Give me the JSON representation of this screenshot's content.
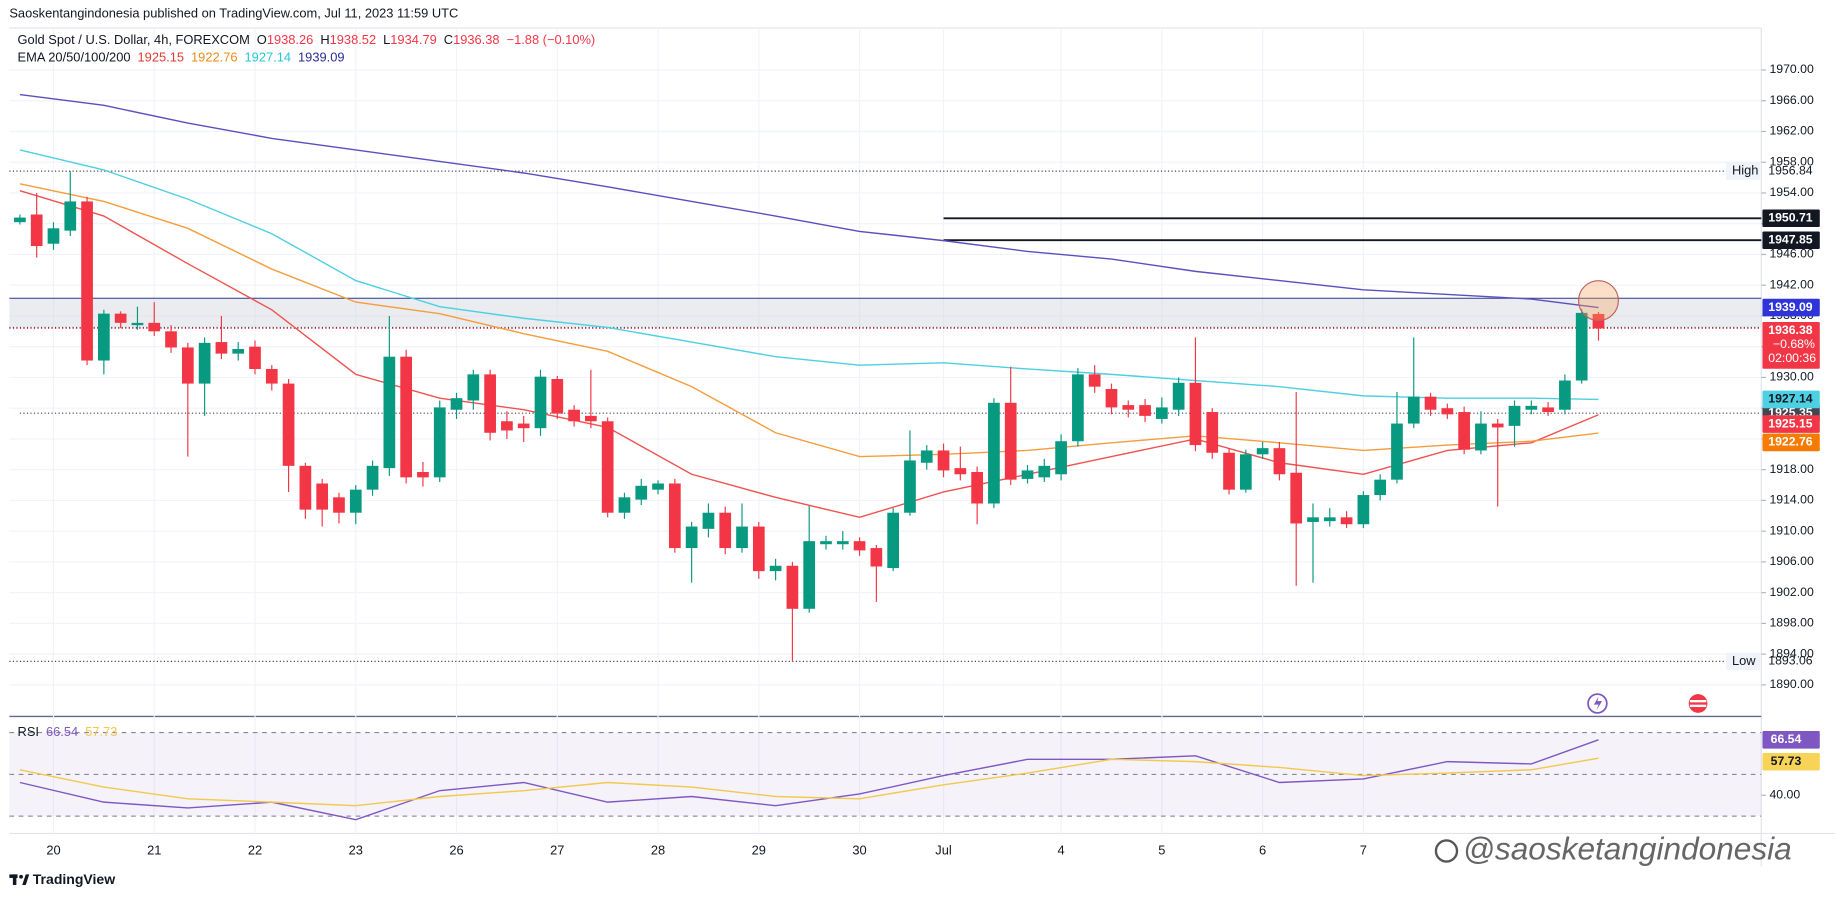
{
  "header": {
    "publisher": "Saoskentangindonesia published on TradingView.com, Jul 11, 2023 11:59 UTC",
    "logo": "TradingView",
    "watermark": "@saosketangindonesia"
  },
  "chart_data": [
    {
      "type": "candlestick",
      "title": "Gold Spot / U.S. Dollar, 4h, FOREXCOM",
      "ohlc_legend": [
        {
          "label": "O",
          "value": 1938.26
        },
        {
          "label": "H",
          "value": 1938.52
        },
        {
          "label": "L",
          "value": 1934.79
        },
        {
          "label": "C",
          "value": 1936.38
        }
      ],
      "change": "−1.88 (−0.10%)",
      "indicator_label": "EMA 20/50/100/200",
      "up_color": "#089981",
      "down_color": "#f23645",
      "categories": [
        null,
        null,
        "20",
        null,
        null,
        null,
        null,
        null,
        "21",
        null,
        null,
        null,
        null,
        null,
        "22",
        null,
        null,
        null,
        null,
        null,
        "23",
        null,
        null,
        null,
        null,
        null,
        "26",
        null,
        null,
        null,
        null,
        null,
        "27",
        null,
        null,
        null,
        null,
        null,
        "28",
        null,
        null,
        null,
        null,
        null,
        "29",
        null,
        null,
        null,
        null,
        null,
        "30",
        null,
        null,
        null,
        null,
        "Jul",
        null,
        null,
        null,
        null,
        null,
        null,
        "4",
        null,
        null,
        null,
        null,
        null,
        "5",
        null,
        null,
        null,
        null,
        null,
        "6",
        null,
        null,
        null,
        null,
        null,
        "7",
        null,
        null,
        null,
        null,
        null,
        null,
        null,
        null,
        null,
        null,
        null,
        null,
        null,
        null
      ],
      "open": [
        1950.2,
        1951.2,
        1947.4,
        1949.1,
        1952.9,
        1932.2,
        1938.3,
        1936.8,
        1937.1,
        1936.0,
        1933.9,
        1929.2,
        1934.6,
        1933.1,
        1934.0,
        1931.1,
        1929.2,
        1918.5,
        1916.2,
        1914.4,
        1912.4,
        1915.4,
        1918.2,
        1932.7,
        1917.7,
        1917.0,
        1925.8,
        1927.0,
        1930.4,
        1924.3,
        1924.0,
        1923.4,
        1929.8,
        1925.8,
        1925.0,
        1924.3,
        1912.4,
        1914.1,
        1915.4,
        1916.2,
        1907.8,
        1910.3,
        1912.4,
        1907.8,
        1910.6,
        1904.8,
        1905.5,
        1899.9,
        1908.3,
        1908.3,
        1908.7,
        1907.8,
        1905.2,
        1912.4,
        1918.9,
        1920.5,
        1918.2,
        1917.7,
        1913.6,
        1926.7,
        1916.8,
        1917.0,
        1917.4,
        1921.7,
        1930.4,
        1928.5,
        1926.4,
        1926.4,
        1924.6,
        1925.8,
        1929.3,
        1925.5,
        1920.2,
        1915.4,
        1920.0,
        1920.8,
        1917.6,
        1911.2,
        1911.3,
        1911.8,
        1910.9,
        1914.7,
        1916.7,
        1924.0,
        1927.5,
        1926.0,
        1925.5,
        1920.5,
        1924.0,
        1923.7,
        1925.8,
        1926.1,
        1925.8,
        1929.6,
        1938.26
      ],
      "high": [
        1951.2,
        1954.0,
        1950.2,
        1956.84,
        1953.5,
        1938.8,
        1938.6,
        1939.2,
        1939.8,
        1936.8,
        1934.5,
        1935.2,
        1938.0,
        1934.6,
        1934.8,
        1931.6,
        1929.8,
        1918.9,
        1916.8,
        1915.0,
        1916.0,
        1919.2,
        1938.0,
        1933.6,
        1919.0,
        1927.0,
        1928.0,
        1931.0,
        1931.0,
        1925.6,
        1925.0,
        1931.0,
        1930.2,
        1926.4,
        1931.0,
        1924.8,
        1915.0,
        1916.8,
        1916.6,
        1916.8,
        1911.2,
        1913.6,
        1913.2,
        1913.6,
        1911.2,
        1906.4,
        1906.0,
        1913.3,
        1909.4,
        1910.0,
        1909.2,
        1908.2,
        1913.0,
        1923.1,
        1921.2,
        1921.4,
        1921.0,
        1918.4,
        1927.3,
        1931.4,
        1918.6,
        1919.4,
        1922.6,
        1931.2,
        1931.6,
        1929.2,
        1927.0,
        1927.2,
        1927.4,
        1930.0,
        1935.2,
        1926.0,
        1920.8,
        1920.6,
        1921.6,
        1921.6,
        1928.1,
        1913.6,
        1913.0,
        1912.6,
        1915.2,
        1917.4,
        1928.1,
        1935.2,
        1928.0,
        1926.6,
        1926.2,
        1925.6,
        1924.6,
        1927.0,
        1927.0,
        1926.8,
        1930.4,
        1938.9,
        1938.52
      ],
      "low": [
        1949.9,
        1945.6,
        1946.6,
        1948.4,
        1931.6,
        1930.4,
        1936.4,
        1936.2,
        1935.4,
        1933.2,
        1919.7,
        1925.0,
        1932.4,
        1932.2,
        1930.4,
        1928.3,
        1915.1,
        1911.6,
        1910.6,
        1911.0,
        1910.9,
        1914.6,
        1917.2,
        1916.2,
        1915.8,
        1916.4,
        1924.6,
        1925.8,
        1921.8,
        1922.0,
        1921.6,
        1922.4,
        1924.6,
        1923.6,
        1923.4,
        1911.8,
        1911.6,
        1913.4,
        1914.8,
        1907.2,
        1903.3,
        1909.2,
        1907.0,
        1907.2,
        1903.8,
        1903.6,
        1893.06,
        1899.4,
        1907.6,
        1907.6,
        1906.8,
        1900.8,
        1904.8,
        1912.0,
        1918.0,
        1917.0,
        1916.6,
        1910.9,
        1913.0,
        1916.0,
        1916.2,
        1916.4,
        1916.6,
        1921.0,
        1928.0,
        1925.2,
        1924.8,
        1924.2,
        1924.0,
        1925.0,
        1920.4,
        1919.4,
        1914.8,
        1915.0,
        1919.4,
        1916.6,
        1902.9,
        1903.3,
        1910.6,
        1910.4,
        1910.4,
        1914.0,
        1916.2,
        1923.4,
        1925.0,
        1924.6,
        1920.0,
        1920.0,
        1913.2,
        1921.0,
        1925.2,
        1925.0,
        1925.2,
        1929.2,
        1934.79
      ],
      "close": [
        1950.8,
        1947.1,
        1949.4,
        1952.9,
        1932.2,
        1938.3,
        1937.1,
        1937.1,
        1936.0,
        1933.9,
        1929.2,
        1934.5,
        1933.1,
        1933.7,
        1931.1,
        1929.2,
        1918.5,
        1912.8,
        1912.8,
        1912.4,
        1915.4,
        1918.5,
        1932.7,
        1917.0,
        1917.0,
        1926.1,
        1927.3,
        1930.4,
        1922.8,
        1923.1,
        1923.4,
        1930.1,
        1925.3,
        1924.3,
        1924.3,
        1912.4,
        1914.4,
        1915.9,
        1916.2,
        1907.8,
        1910.6,
        1912.4,
        1907.8,
        1910.6,
        1904.8,
        1905.5,
        1899.9,
        1908.7,
        1908.7,
        1908.7,
        1907.5,
        1905.4,
        1912.4,
        1919.2,
        1920.5,
        1917.9,
        1917.4,
        1913.6,
        1926.7,
        1916.7,
        1917.9,
        1918.5,
        1921.7,
        1930.4,
        1928.8,
        1926.1,
        1925.8,
        1925.0,
        1926.1,
        1929.3,
        1921.2,
        1920.2,
        1915.4,
        1920.0,
        1920.8,
        1917.4,
        1911.0,
        1911.8,
        1911.8,
        1910.9,
        1914.7,
        1916.7,
        1924.0,
        1927.5,
        1925.8,
        1925.2,
        1920.6,
        1924.0,
        1923.5,
        1926.3,
        1926.3,
        1925.5,
        1929.6,
        1938.4,
        1936.38
      ],
      "ylim": [
        1885.9,
        1975.3
      ],
      "yticks": [
        {
          "value": 1890,
          "label": "1890.00"
        },
        {
          "value": 1894,
          "label": "1894.00"
        },
        {
          "value": 1898,
          "label": "1898.00"
        },
        {
          "value": 1902,
          "label": "1902.00"
        },
        {
          "value": 1906,
          "label": "1906.00"
        },
        {
          "value": 1910,
          "label": "1910.00"
        },
        {
          "value": 1914,
          "label": "1914.00"
        },
        {
          "value": 1918,
          "label": "1918.00"
        },
        {
          "value": 1922,
          "label": "1922.00"
        },
        {
          "value": 1926,
          "label": "1926.00"
        },
        {
          "value": 1930,
          "label": "1930.00"
        },
        {
          "value": 1934,
          "label": "1934.00"
        },
        {
          "value": 1938,
          "label": "1938.00"
        },
        {
          "value": 1942,
          "label": "1942.00"
        },
        {
          "value": 1946,
          "label": "1946.00"
        },
        {
          "value": 1950,
          "label": "1950.00"
        },
        {
          "value": 1954,
          "label": "1954.00"
        },
        {
          "value": 1958,
          "label": "1958.00"
        },
        {
          "value": 1962,
          "label": "1962.00"
        },
        {
          "value": 1966,
          "label": "1966.00"
        },
        {
          "value": 1970,
          "label": "1970.00"
        }
      ],
      "grid": true,
      "x": [
        0,
        5,
        10,
        15,
        20,
        25,
        30,
        35,
        40,
        45,
        50,
        55,
        60,
        65,
        70,
        75,
        80,
        85,
        90,
        94
      ],
      "series": [
        {
          "color": "#ef5350",
          "values": [
            1954.3,
            1951.0,
            1944.8,
            1938.8,
            1930.4,
            1927.3,
            1925.8,
            1923.5,
            1917.4,
            1914.4,
            1911.8,
            1915.1,
            1917.4,
            1919.7,
            1922.0,
            1918.9,
            1917.4,
            1920.5,
            1921.5,
            1925.15
          ]
        },
        {
          "color": "#f59d3d",
          "values": [
            1955.2,
            1952.9,
            1949.4,
            1944.1,
            1939.8,
            1938.3,
            1935.7,
            1933.4,
            1928.8,
            1922.8,
            1919.7,
            1920.0,
            1920.5,
            1921.5,
            1922.4,
            1921.5,
            1920.5,
            1921.2,
            1921.7,
            1922.76
          ]
        },
        {
          "color": "#4dd0e1",
          "values": [
            1959.6,
            1957.0,
            1953.2,
            1948.7,
            1942.6,
            1939.2,
            1937.7,
            1936.5,
            1934.6,
            1932.7,
            1931.6,
            1931.9,
            1931.1,
            1930.4,
            1929.6,
            1928.8,
            1927.6,
            1927.3,
            1927.3,
            1927.14
          ]
        },
        {
          "color": "#5b4fbf",
          "values": [
            1966.8,
            1965.4,
            1963.1,
            1961.1,
            1959.6,
            1958.1,
            1956.6,
            1954.8,
            1952.9,
            1951.0,
            1949.0,
            1947.8,
            1946.4,
            1945.4,
            1943.8,
            1942.6,
            1941.4,
            1940.8,
            1940.2,
            1939.09
          ]
        }
      ],
      "high_label": "High",
      "low_label": "Low",
      "price_change": "−0.68%",
      "countdown": "02:00:36",
      "zone": {
        "range": [
          1936.5,
          1940.3
        ],
        "color": "#d1d4dc"
      },
      "lines": [
        {
          "value": 1950.71,
          "start": 55,
          "style": "solid",
          "color": "#131722"
        },
        {
          "value": 1947.85,
          "start": 55,
          "style": "solid",
          "color": "#131722"
        },
        {
          "value": 1925.35,
          "start": 0,
          "style": "dotted",
          "color": "#434651"
        }
      ],
      "highlight": {
        "index": 94,
        "value": 1940.0,
        "color": "#f7a35c"
      }
    },
    {
      "type": "line",
      "title": "RSI",
      "x": [
        0,
        5,
        10,
        15,
        20,
        25,
        30,
        35,
        40,
        45,
        50,
        55,
        60,
        65,
        70,
        75,
        80,
        85,
        90,
        94
      ],
      "series": [
        {
          "color": "#7e57c2",
          "values": [
            46.1,
            36.7,
            33.9,
            36.7,
            28.3,
            42.2,
            46.1,
            36.7,
            39.4,
            35.0,
            40.6,
            49.4,
            57.2,
            57.2,
            58.9,
            46.1,
            47.8,
            56.1,
            55.0,
            66.54
          ]
        },
        {
          "color": "#f2c94c",
          "values": [
            52.2,
            43.9,
            38.3,
            36.7,
            35.0,
            39.4,
            42.2,
            46.1,
            43.9,
            39.4,
            38.3,
            45.0,
            50.6,
            57.2,
            56.1,
            53.3,
            49.4,
            50.6,
            52.2,
            57.73
          ]
        }
      ],
      "ylim": [
        21.7,
        77.2
      ],
      "yticks": [
        {
          "value": 40,
          "label": "40.00"
        }
      ],
      "bands": [
        70,
        50,
        30
      ]
    }
  ]
}
